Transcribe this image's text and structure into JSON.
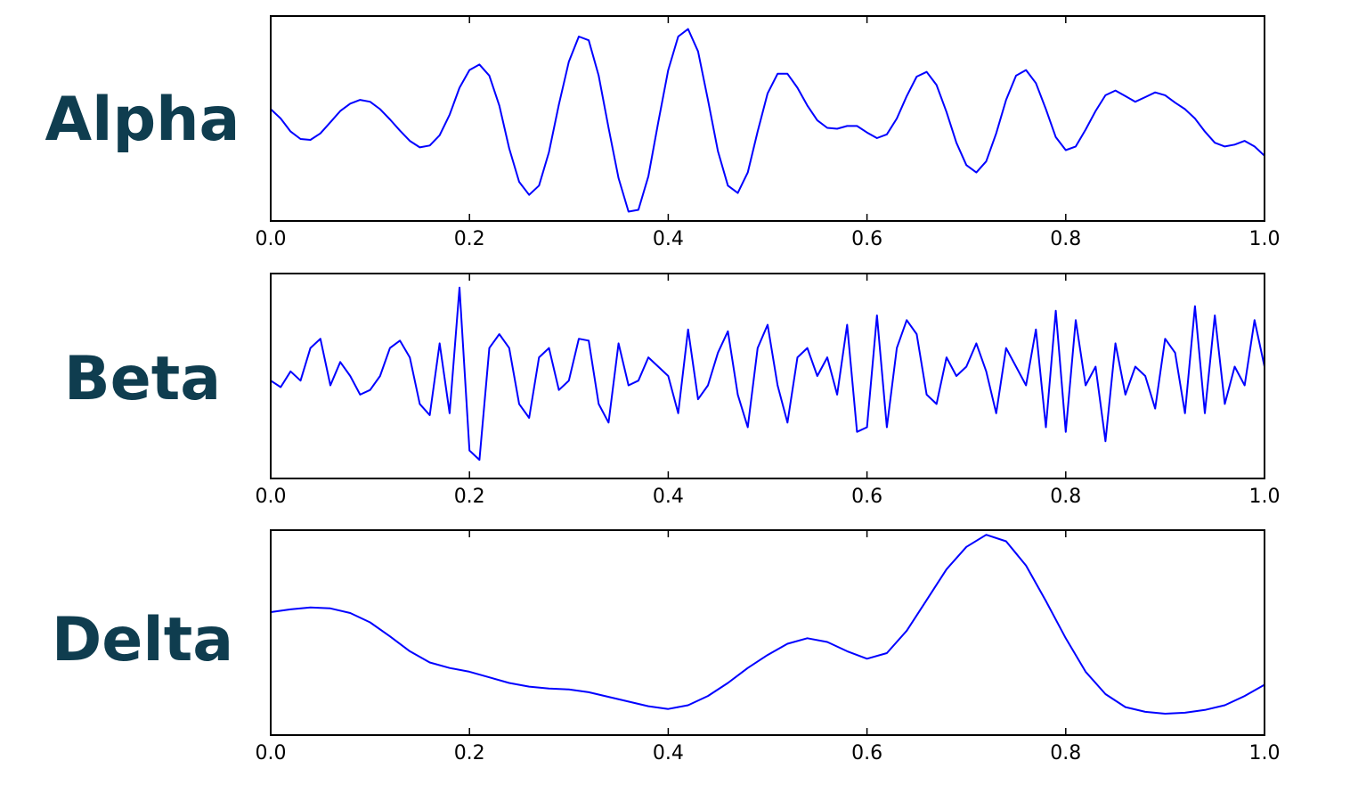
{
  "colors": {
    "band_label": "#0f3d4f",
    "line": "#0000ff",
    "frame": "#000000",
    "background": "#ffffff"
  },
  "chart_data": [
    {
      "type": "line",
      "band_label": "Alpha",
      "xlim": [
        0,
        1
      ],
      "ylim": [
        -1.1,
        1.1
      ],
      "xticks": [
        "0.0",
        "0.2",
        "0.4",
        "0.6",
        "0.8",
        "1.0"
      ],
      "y_ticks_shown": false,
      "grid": false,
      "series": [
        {
          "color": "#0000ff",
          "x": [
            0,
            0.01,
            0.02,
            0.03,
            0.04,
            0.05,
            0.06,
            0.07,
            0.08,
            0.09,
            0.1,
            0.11,
            0.12,
            0.13,
            0.14,
            0.15,
            0.16,
            0.17,
            0.18,
            0.19,
            0.2,
            0.21,
            0.22,
            0.23,
            0.24,
            0.25,
            0.26,
            0.27,
            0.28,
            0.29,
            0.3,
            0.31,
            0.32,
            0.33,
            0.34,
            0.35,
            0.36,
            0.37,
            0.38,
            0.39,
            0.4,
            0.41,
            0.42,
            0.43,
            0.44,
            0.45,
            0.46,
            0.47,
            0.48,
            0.49,
            0.5,
            0.51,
            0.52,
            0.53,
            0.54,
            0.55,
            0.56,
            0.57,
            0.58,
            0.59,
            0.6,
            0.61,
            0.62,
            0.63,
            0.64,
            0.65,
            0.66,
            0.67,
            0.68,
            0.69,
            0.7,
            0.71,
            0.72,
            0.73,
            0.74,
            0.75,
            0.76,
            0.77,
            0.78,
            0.79,
            0.8,
            0.81,
            0.82,
            0.83,
            0.84,
            0.85,
            0.86,
            0.87,
            0.88,
            0.89,
            0.9,
            0.91,
            0.92,
            0.93,
            0.94,
            0.95,
            0.96,
            0.97,
            0.98,
            0.99,
            1.0
          ],
          "y": [
            0.1,
            0.0,
            -0.14,
            -0.22,
            -0.23,
            -0.16,
            -0.04,
            0.08,
            0.16,
            0.2,
            0.18,
            0.1,
            -0.01,
            -0.13,
            -0.24,
            -0.31,
            -0.29,
            -0.18,
            0.04,
            0.33,
            0.52,
            0.58,
            0.46,
            0.14,
            -0.32,
            -0.68,
            -0.82,
            -0.72,
            -0.36,
            0.15,
            0.61,
            0.88,
            0.84,
            0.46,
            -0.1,
            -0.64,
            -1.0,
            -0.98,
            -0.62,
            -0.04,
            0.52,
            0.88,
            0.96,
            0.72,
            0.2,
            -0.35,
            -0.72,
            -0.8,
            -0.58,
            -0.14,
            0.27,
            0.48,
            0.48,
            0.33,
            0.14,
            -0.02,
            -0.1,
            -0.11,
            -0.08,
            -0.08,
            -0.15,
            -0.21,
            -0.17,
            0.0,
            0.24,
            0.45,
            0.5,
            0.36,
            0.07,
            -0.26,
            -0.5,
            -0.58,
            -0.46,
            -0.16,
            0.2,
            0.46,
            0.52,
            0.38,
            0.1,
            -0.2,
            -0.34,
            -0.3,
            -0.12,
            0.08,
            0.25,
            0.3,
            0.24,
            0.18,
            0.23,
            0.28,
            0.25,
            0.17,
            0.1,
            0.0,
            -0.14,
            -0.26,
            -0.3,
            -0.28,
            -0.24,
            -0.3,
            -0.4
          ]
        }
      ]
    },
    {
      "type": "line",
      "band_label": "Beta",
      "xlim": [
        0,
        1
      ],
      "ylim": [
        -1.1,
        1.1
      ],
      "xticks": [
        "0.0",
        "0.2",
        "0.4",
        "0.6",
        "0.8",
        "1.0"
      ],
      "y_ticks_shown": false,
      "grid": false,
      "series": [
        {
          "color": "#0000ff",
          "x": [
            0,
            0.01,
            0.02,
            0.03,
            0.04,
            0.05,
            0.06,
            0.07,
            0.08,
            0.09,
            0.1,
            0.11,
            0.12,
            0.13,
            0.14,
            0.15,
            0.16,
            0.17,
            0.18,
            0.19,
            0.2,
            0.21,
            0.22,
            0.23,
            0.24,
            0.25,
            0.26,
            0.27,
            0.28,
            0.29,
            0.3,
            0.31,
            0.32,
            0.33,
            0.34,
            0.35,
            0.36,
            0.37,
            0.38,
            0.39,
            0.4,
            0.41,
            0.42,
            0.43,
            0.44,
            0.45,
            0.46,
            0.47,
            0.48,
            0.49,
            0.5,
            0.51,
            0.52,
            0.53,
            0.54,
            0.55,
            0.56,
            0.57,
            0.58,
            0.59,
            0.6,
            0.61,
            0.62,
            0.63,
            0.64,
            0.65,
            0.66,
            0.67,
            0.68,
            0.69,
            0.7,
            0.71,
            0.72,
            0.73,
            0.74,
            0.75,
            0.76,
            0.77,
            0.78,
            0.79,
            0.8,
            0.81,
            0.82,
            0.83,
            0.84,
            0.85,
            0.86,
            0.87,
            0.88,
            0.89,
            0.9,
            0.91,
            0.92,
            0.93,
            0.94,
            0.95,
            0.96,
            0.97,
            0.98,
            0.99,
            1.0
          ],
          "y": [
            -0.05,
            -0.12,
            0.05,
            -0.05,
            0.3,
            0.4,
            -0.1,
            0.15,
            0.0,
            -0.2,
            -0.15,
            0.0,
            0.3,
            0.38,
            0.2,
            -0.3,
            -0.42,
            0.35,
            -0.4,
            0.95,
            -0.8,
            -0.9,
            0.3,
            0.45,
            0.3,
            -0.3,
            -0.45,
            0.2,
            0.3,
            -0.15,
            -0.05,
            0.4,
            0.38,
            -0.3,
            -0.5,
            0.35,
            -0.1,
            -0.05,
            0.2,
            0.1,
            0.0,
            -0.4,
            0.5,
            -0.25,
            -0.1,
            0.25,
            0.48,
            -0.2,
            -0.55,
            0.3,
            0.55,
            -0.1,
            -0.5,
            0.2,
            0.3,
            0.0,
            0.2,
            -0.2,
            0.55,
            -0.6,
            -0.55,
            0.65,
            -0.55,
            0.3,
            0.6,
            0.45,
            -0.2,
            -0.3,
            0.2,
            0.0,
            0.1,
            0.35,
            0.05,
            -0.4,
            0.3,
            0.1,
            -0.1,
            0.5,
            -0.55,
            0.7,
            -0.6,
            0.6,
            -0.1,
            0.1,
            -0.7,
            0.35,
            -0.2,
            0.1,
            0.0,
            -0.35,
            0.4,
            0.25,
            -0.4,
            0.75,
            -0.4,
            0.65,
            -0.3,
            0.1,
            -0.1,
            0.6,
            0.1
          ]
        }
      ]
    },
    {
      "type": "line",
      "band_label": "Delta",
      "xlim": [
        0,
        1
      ],
      "ylim": [
        -1.1,
        1.1
      ],
      "xticks": [
        "0.0",
        "0.2",
        "0.4",
        "0.6",
        "0.8",
        "1.0"
      ],
      "y_ticks_shown": false,
      "grid": false,
      "series": [
        {
          "color": "#0000ff",
          "x": [
            0,
            0.02,
            0.04,
            0.06,
            0.08,
            0.1,
            0.12,
            0.14,
            0.16,
            0.18,
            0.2,
            0.22,
            0.24,
            0.26,
            0.28,
            0.3,
            0.32,
            0.34,
            0.36,
            0.38,
            0.4,
            0.42,
            0.44,
            0.46,
            0.48,
            0.5,
            0.52,
            0.54,
            0.56,
            0.58,
            0.6,
            0.62,
            0.64,
            0.66,
            0.68,
            0.7,
            0.72,
            0.74,
            0.76,
            0.78,
            0.8,
            0.82,
            0.84,
            0.86,
            0.88,
            0.9,
            0.92,
            0.94,
            0.96,
            0.98,
            1.0
          ],
          "y": [
            0.22,
            0.25,
            0.27,
            0.26,
            0.21,
            0.11,
            -0.04,
            -0.2,
            -0.32,
            -0.38,
            -0.42,
            -0.48,
            -0.54,
            -0.58,
            -0.6,
            -0.61,
            -0.64,
            -0.69,
            -0.74,
            -0.79,
            -0.82,
            -0.78,
            -0.68,
            -0.54,
            -0.38,
            -0.24,
            -0.12,
            -0.06,
            -0.1,
            -0.2,
            -0.28,
            -0.22,
            0.02,
            0.35,
            0.68,
            0.92,
            1.05,
            0.98,
            0.72,
            0.34,
            -0.06,
            -0.42,
            -0.66,
            -0.8,
            -0.85,
            -0.87,
            -0.86,
            -0.83,
            -0.78,
            -0.68,
            -0.56
          ]
        }
      ]
    }
  ]
}
